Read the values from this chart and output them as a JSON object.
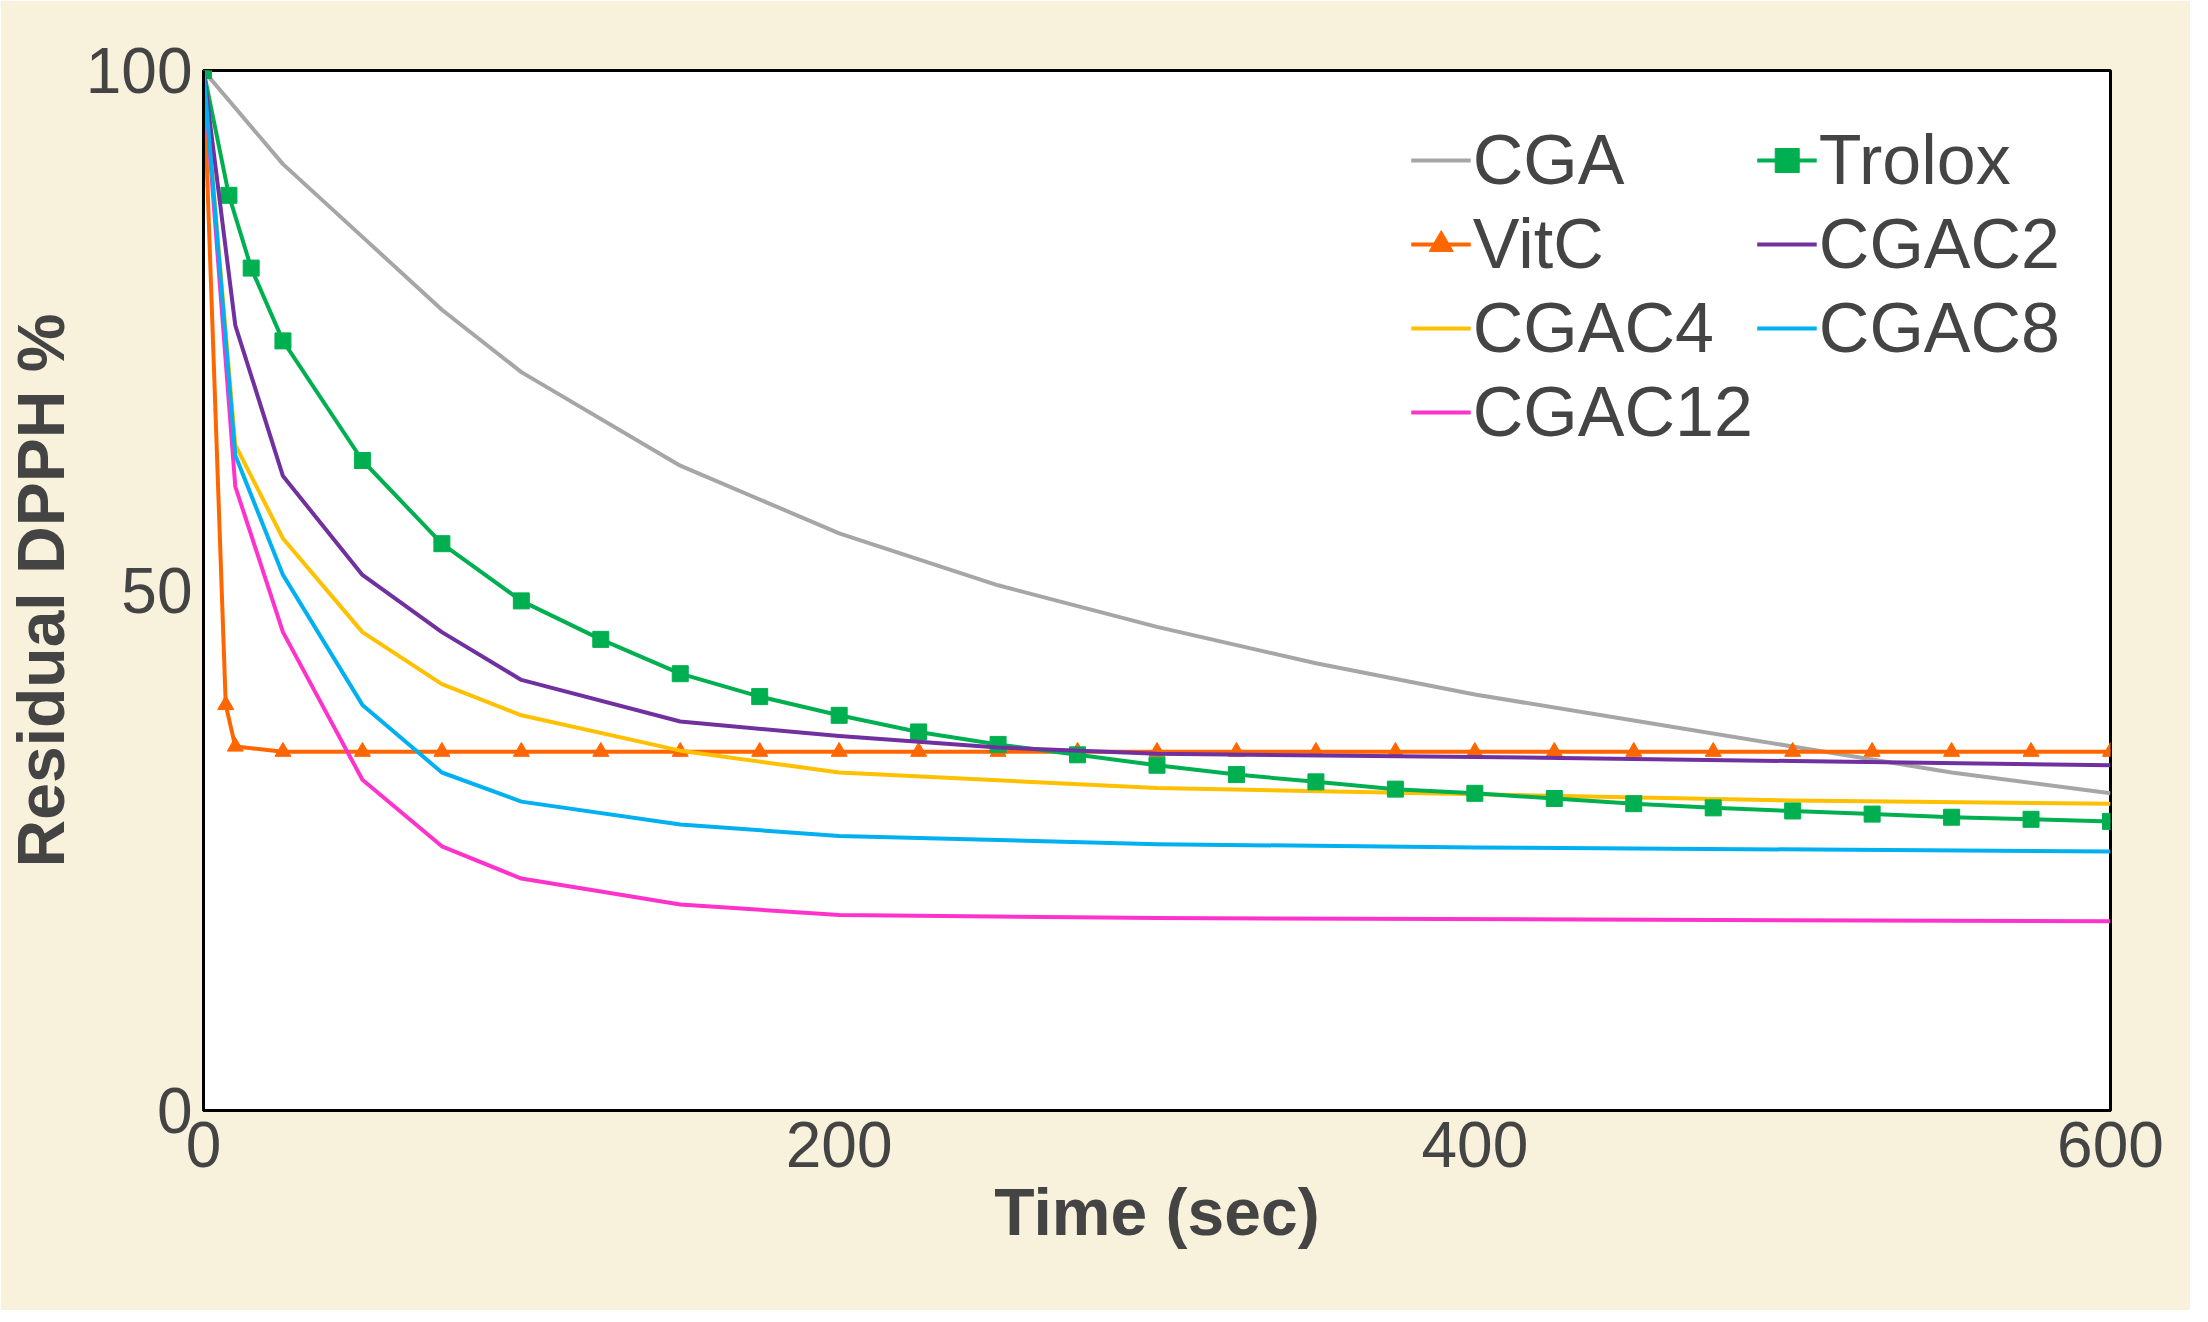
{
  "chart_data": {
    "type": "line",
    "xlabel": "Time (sec)",
    "ylabel": "Residual DPPH %",
    "xlim": [
      0,
      600
    ],
    "ylim": [
      0,
      100
    ],
    "xticks": [
      0,
      200,
      400,
      600
    ],
    "yticks": [
      0,
      50,
      100
    ],
    "grid": false,
    "legend": "top right",
    "series": [
      {
        "name": "CGA",
        "color": "#a6a6a6",
        "x": [
          0,
          25,
          50,
          75,
          100,
          150,
          200,
          250,
          300,
          350,
          400,
          450,
          500,
          550,
          600
        ],
        "values": [
          100,
          91,
          84,
          77,
          71,
          62,
          55.5,
          50.5,
          46.5,
          43,
          40,
          37.5,
          35,
          32.5,
          30.5
        ]
      },
      {
        "name": "VitC",
        "color": "#ff6600",
        "marker": "triangle",
        "x": [
          0,
          7,
          10,
          25,
          50,
          75,
          100,
          125,
          150,
          175,
          200,
          225,
          250,
          275,
          300,
          325,
          350,
          375,
          400,
          425,
          450,
          475,
          500,
          525,
          550,
          575,
          600
        ],
        "values": [
          100,
          39,
          35,
          34.5,
          34.5,
          34.5,
          34.5,
          34.5,
          34.5,
          34.5,
          34.5,
          34.5,
          34.5,
          34.5,
          34.5,
          34.5,
          34.5,
          34.5,
          34.5,
          34.5,
          34.5,
          34.5,
          34.5,
          34.5,
          34.5,
          34.5,
          34.5
        ]
      },
      {
        "name": "CGAC4",
        "color": "#ffc000",
        "x": [
          0,
          10,
          25,
          50,
          75,
          100,
          150,
          200,
          300,
          400,
          500,
          600
        ],
        "values": [
          100,
          64,
          55,
          46,
          41,
          38,
          34.6,
          32.5,
          31,
          30.4,
          29.8,
          29.5
        ]
      },
      {
        "name": "CGAC12",
        "color": "#ff33cc",
        "x": [
          0,
          10,
          25,
          50,
          75,
          100,
          150,
          200,
          300,
          600
        ],
        "values": [
          100,
          60,
          46,
          31.8,
          25.4,
          22.3,
          19.8,
          18.8,
          18.5,
          18.2
        ]
      },
      {
        "name": "Trolox",
        "color": "#00b050",
        "marker": "square",
        "x": [
          0,
          8,
          15,
          25,
          50,
          75,
          100,
          125,
          150,
          175,
          200,
          225,
          250,
          275,
          300,
          325,
          350,
          375,
          400,
          425,
          450,
          475,
          500,
          525,
          550,
          575,
          600
        ],
        "values": [
          100,
          88,
          81,
          74,
          62.5,
          54.5,
          49,
          45.3,
          42,
          39.8,
          38,
          36.4,
          35.2,
          34.2,
          33.2,
          32.3,
          31.6,
          30.9,
          30.5,
          30,
          29.5,
          29.1,
          28.8,
          28.5,
          28.2,
          28,
          27.8
        ]
      },
      {
        "name": "CGAC2",
        "color": "#7030a0",
        "x": [
          0,
          10,
          25,
          50,
          75,
          100,
          150,
          200,
          250,
          300,
          400,
          500,
          600
        ],
        "values": [
          100,
          75.5,
          61,
          51.5,
          46,
          41.4,
          37.4,
          36,
          34.9,
          34.3,
          34,
          33.6,
          33.2
        ]
      },
      {
        "name": "CGAC8",
        "color": "#00b0f0",
        "x": [
          0,
          10,
          25,
          50,
          75,
          100,
          150,
          200,
          300,
          400,
          600
        ],
        "values": [
          100,
          63,
          51.5,
          39,
          32.5,
          29.7,
          27.5,
          26.4,
          25.6,
          25.3,
          24.9
        ]
      }
    ]
  }
}
